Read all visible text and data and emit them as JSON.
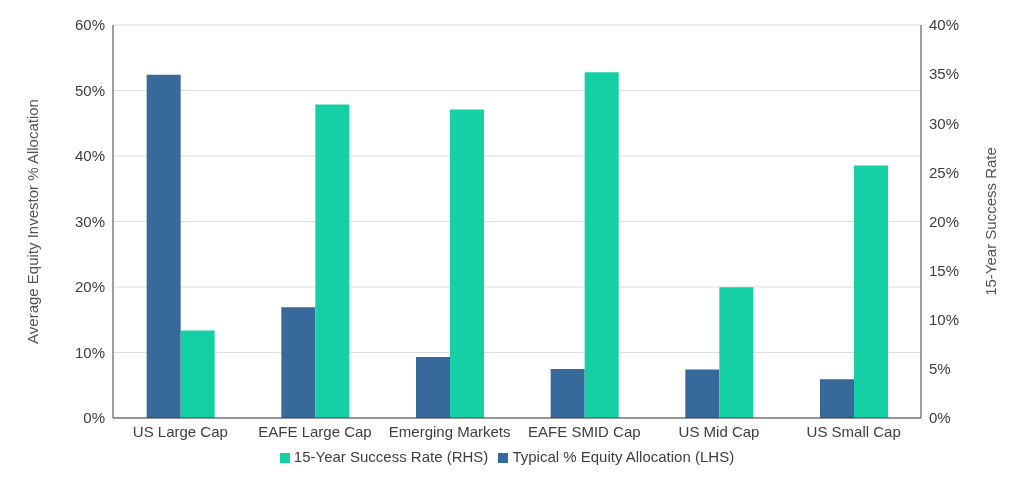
{
  "chart_data": {
    "type": "bar",
    "categories": [
      "US Large Cap",
      "EAFE Large Cap",
      "Emerging Markets",
      "EAFE SMID Cap",
      "US Mid Cap",
      "US Small Cap"
    ],
    "series": [
      {
        "name": "Typical % Equity Allocation (LHS)",
        "color": "#376a9a",
        "values": [
          52.4,
          16.9,
          9.3,
          7.5,
          7.4,
          5.9
        ]
      },
      {
        "name": "15-Year Success Rate (RHS)",
        "color": "#15cfa5",
        "axis": "y2",
        "values": [
          8.9,
          31.9,
          31.4,
          35.2,
          13.3,
          25.7
        ]
      }
    ],
    "ylabel": "Average  Equity Investor % Allocation",
    "y2label": "15-Year Success Rate",
    "ylim": [
      0,
      60
    ],
    "yticks": [
      {
        "value": 0,
        "label": "0%"
      },
      {
        "value": 10,
        "label": "10%"
      },
      {
        "value": 20,
        "label": "20%"
      },
      {
        "value": 30,
        "label": "30%"
      },
      {
        "value": 40,
        "label": "40%"
      },
      {
        "value": 50,
        "label": "50%"
      },
      {
        "value": 60,
        "label": "60%"
      }
    ],
    "y2lim": [
      0,
      40
    ],
    "y2ticks": [
      {
        "value": 0,
        "label": "0%"
      },
      {
        "value": 5,
        "label": "5%"
      },
      {
        "value": 10,
        "label": "10%"
      },
      {
        "value": 15,
        "label": "15%"
      },
      {
        "value": 20,
        "label": "20%"
      },
      {
        "value": 25,
        "label": "25%"
      },
      {
        "value": 30,
        "label": "30%"
      },
      {
        "value": 35,
        "label": "35%"
      },
      {
        "value": 40,
        "label": "40%"
      }
    ],
    "grid": "y",
    "legend": "bottom"
  }
}
